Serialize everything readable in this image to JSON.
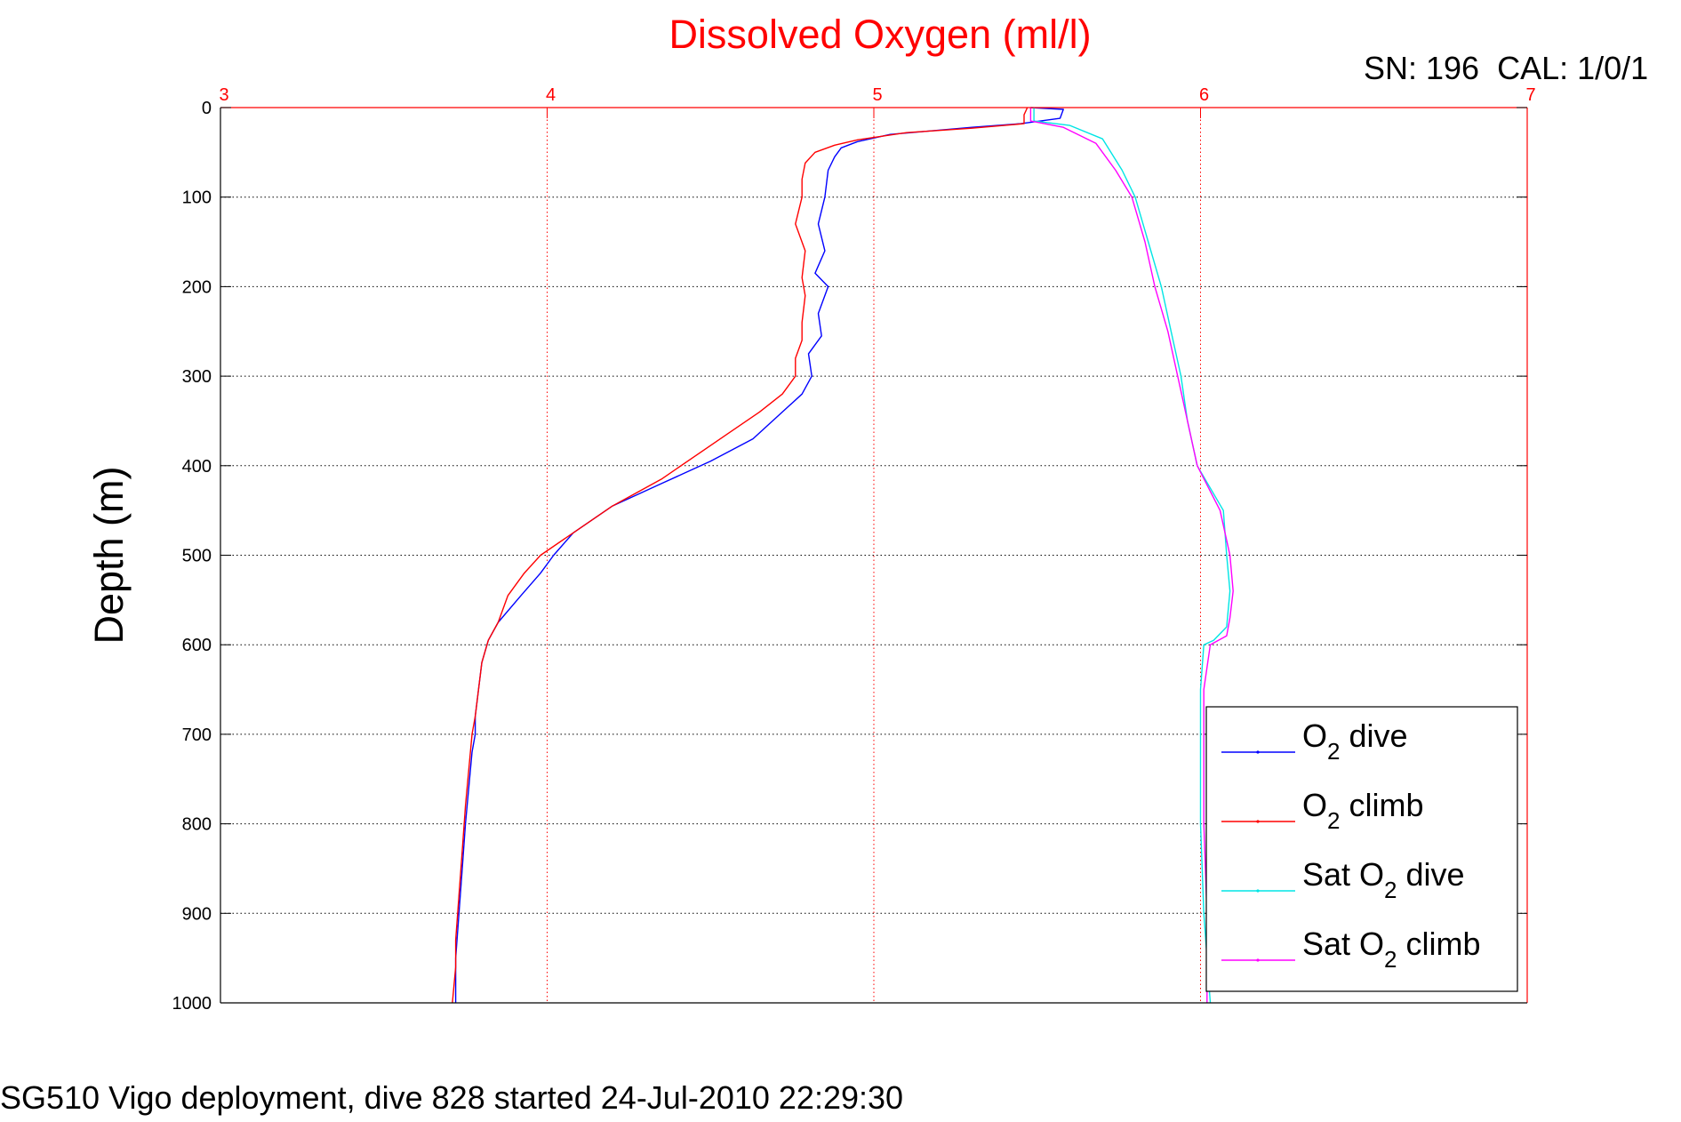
{
  "chart_data": {
    "type": "line",
    "title": "Dissolved Oxygen (ml/l)",
    "corner_text": "SN: 196  CAL: 1/0/1",
    "footer_text": "SG510 Vigo deployment, dive 828 started 24-Jul-2010 22:29:30",
    "ylabel": "Depth (m)",
    "xlim": [
      3,
      7
    ],
    "ylim": [
      0,
      1000
    ],
    "y_reversed": true,
    "x_axis_position": "top",
    "xticks": [
      3,
      4,
      5,
      6,
      7
    ],
    "yticks": [
      0,
      100,
      200,
      300,
      400,
      500,
      600,
      700,
      800,
      900,
      1000
    ],
    "grid": true,
    "legend_position": "bottom-right",
    "colors": {
      "title": "#ff0000",
      "x_axis": "#ff0000",
      "y_axis": "#000000",
      "grid_x": "#ff0000",
      "grid_y": "#000000"
    },
    "series": [
      {
        "name": "O2 dive",
        "legend_base": "O",
        "legend_sub": "2",
        "legend_rest": " dive",
        "color": "#0000ff",
        "points": [
          [
            5.48,
            0
          ],
          [
            5.58,
            2
          ],
          [
            5.57,
            12
          ],
          [
            5.45,
            18
          ],
          [
            5.3,
            22
          ],
          [
            5.05,
            30
          ],
          [
            4.95,
            38
          ],
          [
            4.9,
            45
          ],
          [
            4.88,
            55
          ],
          [
            4.86,
            70
          ],
          [
            4.85,
            100
          ],
          [
            4.83,
            130
          ],
          [
            4.85,
            160
          ],
          [
            4.82,
            185
          ],
          [
            4.86,
            200
          ],
          [
            4.83,
            230
          ],
          [
            4.84,
            255
          ],
          [
            4.8,
            275
          ],
          [
            4.81,
            300
          ],
          [
            4.78,
            320
          ],
          [
            4.72,
            340
          ],
          [
            4.63,
            370
          ],
          [
            4.5,
            395
          ],
          [
            4.35,
            420
          ],
          [
            4.2,
            445
          ],
          [
            4.08,
            475
          ],
          [
            4.02,
            500
          ],
          [
            3.98,
            520
          ],
          [
            3.92,
            545
          ],
          [
            3.85,
            575
          ],
          [
            3.82,
            595
          ],
          [
            3.8,
            620
          ],
          [
            3.79,
            650
          ],
          [
            3.78,
            680
          ],
          [
            3.78,
            700
          ],
          [
            3.77,
            720
          ],
          [
            3.76,
            760
          ],
          [
            3.75,
            800
          ],
          [
            3.74,
            850
          ],
          [
            3.73,
            900
          ],
          [
            3.72,
            950
          ],
          [
            3.72,
            1000
          ]
        ]
      },
      {
        "name": "O2 climb",
        "legend_base": "O",
        "legend_sub": "2",
        "legend_rest": " climb",
        "color": "#ff0000",
        "points": [
          [
            5.47,
            0
          ],
          [
            5.46,
            8
          ],
          [
            5.46,
            18
          ],
          [
            5.3,
            23
          ],
          [
            5.1,
            28
          ],
          [
            4.95,
            36
          ],
          [
            4.88,
            42
          ],
          [
            4.82,
            50
          ],
          [
            4.79,
            62
          ],
          [
            4.78,
            80
          ],
          [
            4.78,
            100
          ],
          [
            4.76,
            130
          ],
          [
            4.79,
            160
          ],
          [
            4.78,
            190
          ],
          [
            4.79,
            210
          ],
          [
            4.78,
            240
          ],
          [
            4.78,
            260
          ],
          [
            4.76,
            280
          ],
          [
            4.76,
            300
          ],
          [
            4.72,
            320
          ],
          [
            4.65,
            340
          ],
          [
            4.55,
            365
          ],
          [
            4.45,
            390
          ],
          [
            4.35,
            415
          ],
          [
            4.2,
            445
          ],
          [
            4.08,
            475
          ],
          [
            3.98,
            500
          ],
          [
            3.93,
            520
          ],
          [
            3.88,
            545
          ],
          [
            3.85,
            575
          ],
          [
            3.82,
            595
          ],
          [
            3.8,
            620
          ],
          [
            3.79,
            650
          ],
          [
            3.78,
            680
          ],
          [
            3.77,
            700
          ],
          [
            3.76,
            740
          ],
          [
            3.75,
            780
          ],
          [
            3.74,
            830
          ],
          [
            3.73,
            880
          ],
          [
            3.72,
            930
          ],
          [
            3.72,
            960
          ],
          [
            3.71,
            1000
          ]
        ]
      },
      {
        "name": "Sat O2 dive",
        "legend_base": "Sat O",
        "legend_sub": "2",
        "legend_rest": " dive",
        "color": "#00e5e5",
        "points": [
          [
            5.49,
            0
          ],
          [
            5.49,
            15
          ],
          [
            5.6,
            20
          ],
          [
            5.7,
            35
          ],
          [
            5.76,
            70
          ],
          [
            5.8,
            100
          ],
          [
            5.84,
            150
          ],
          [
            5.88,
            200
          ],
          [
            5.91,
            250
          ],
          [
            5.94,
            300
          ],
          [
            5.96,
            350
          ],
          [
            5.99,
            400
          ],
          [
            6.07,
            450
          ],
          [
            6.08,
            500
          ],
          [
            6.09,
            540
          ],
          [
            6.08,
            580
          ],
          [
            6.04,
            595
          ],
          [
            6.01,
            600
          ],
          [
            6.0,
            650
          ],
          [
            6.0,
            700
          ],
          [
            6.0,
            800
          ],
          [
            6.01,
            900
          ],
          [
            6.03,
            1000
          ]
        ]
      },
      {
        "name": "Sat O2 climb",
        "legend_base": "Sat O",
        "legend_sub": "2",
        "legend_rest": " climb",
        "color": "#ff00ff",
        "points": [
          [
            5.48,
            0
          ],
          [
            5.48,
            15
          ],
          [
            5.58,
            22
          ],
          [
            5.68,
            40
          ],
          [
            5.74,
            70
          ],
          [
            5.79,
            100
          ],
          [
            5.83,
            150
          ],
          [
            5.86,
            200
          ],
          [
            5.9,
            250
          ],
          [
            5.93,
            300
          ],
          [
            5.96,
            350
          ],
          [
            5.99,
            400
          ],
          [
            6.06,
            450
          ],
          [
            6.09,
            500
          ],
          [
            6.1,
            540
          ],
          [
            6.09,
            570
          ],
          [
            6.08,
            590
          ],
          [
            6.03,
            600
          ],
          [
            6.01,
            650
          ],
          [
            6.01,
            700
          ],
          [
            6.01,
            800
          ],
          [
            6.02,
            900
          ],
          [
            6.02,
            1000
          ]
        ]
      }
    ]
  }
}
